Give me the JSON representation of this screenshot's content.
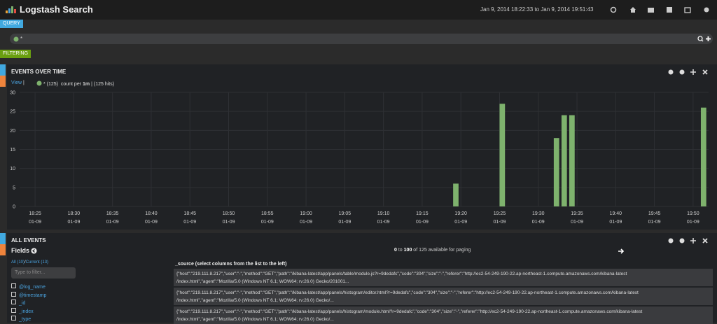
{
  "header": {
    "title": "Logstash Search",
    "time_range": "Jan 9, 2014 18:22:33 to Jan 9, 2014 19:51:43"
  },
  "query": {
    "tab": "QUERY",
    "text": "*"
  },
  "filtering": {
    "tab": "FILTERING"
  },
  "events_panel": {
    "title": "EVENTS OVER TIME",
    "view": "View",
    "separator": "|",
    "count_per": "count per",
    "interval": "1m",
    "hits": "(125 hits)"
  },
  "chart_data": {
    "type": "bar",
    "x": [
      "19:19",
      "19:25",
      "19:32",
      "19:33",
      "19:34",
      "19:51"
    ],
    "series": [
      {
        "name": "* (125)",
        "color": "#7eb26d",
        "values": [
          6,
          27,
          18,
          24,
          24,
          26
        ]
      }
    ],
    "xlim": [
      "18:23",
      "19:52"
    ],
    "xticks": [
      "18:25",
      "18:30",
      "18:35",
      "18:40",
      "18:45",
      "18:50",
      "18:55",
      "19:00",
      "19:05",
      "19:10",
      "19:15",
      "19:20",
      "19:25",
      "19:30",
      "19:35",
      "19:40",
      "19:45",
      "19:50"
    ],
    "xtick_dates": [
      "01-09",
      "01-09",
      "01-09",
      "01-09",
      "01-09",
      "01-09",
      "01-09",
      "01-09",
      "01-09",
      "01-09",
      "01-09",
      "01-09",
      "01-09",
      "01-09",
      "01-09",
      "01-09",
      "01-09",
      "01-09"
    ],
    "ylim": [
      0,
      30
    ],
    "yticks": [
      0,
      5,
      10,
      15,
      20,
      25,
      30
    ],
    "grid": true
  },
  "all_events": {
    "title": "ALL EVENTS",
    "fields_title": "Fields",
    "all": "All (10)",
    "slash": "/",
    "current": "Current (13)",
    "filter_placeholder": "Type to filter...",
    "fields": [
      "@log_name",
      "@timestamp",
      "_id",
      "_index",
      "_type"
    ],
    "paging": {
      "from": "0",
      "to_word": "to",
      "to": "100",
      "rest": "of 125 available for paging"
    },
    "column_header": "_source (select columns from the list to the left)",
    "rows": [
      [
        "{\"host\":\"219.111.8.217\",\"user\":\"-\",\"method\":\"GET\",\"path\":\"/kibana-latest/app/panels/table/module.js?r=9dedafc\",\"code\":\"304\",\"size\":\"-\",\"referer\":\"http://ec2-54-249-190-22.ap-northeast-1.compute.amazonaws.com/kibana-latest",
        "/index.html\",\"agent\":\"Mozilla/5.0 (Windows NT 6.1; WOW64; rv:26.0) Gecko/201001..."
      ],
      [
        "{\"host\":\"219.111.8.217\",\"user\":\"-\",\"method\":\"GET\",\"path\":\"/kibana-latest/app/panels/histogram/editor.html?r=9dedafc\",\"code\":\"304\",\"size\":\"-\",\"referer\":\"http://ec2-54-249-190-22.ap-northeast-1.compute.amazonaws.com/kibana-latest",
        "/index.html\",\"agent\":\"Mozilla/5.0 (Windows NT 6.1; WOW64; rv:26.0) Gecko/..."
      ],
      [
        "{\"host\":\"219.111.8.217\",\"user\":\"-\",\"method\":\"GET\",\"path\":\"/kibana-latest/app/panels/histogram/module.html?r=9dedafc\",\"code\":\"304\",\"size\":\"-\",\"referer\":\"http://ec2-54-249-190-22.ap-northeast-1.compute.amazonaws.com/kibana-latest",
        "/index.html\",\"agent\":\"Mozilla/5.0 (Windows NT 6.1; WOW64; rv:26.0) Gecko/..."
      ]
    ]
  }
}
